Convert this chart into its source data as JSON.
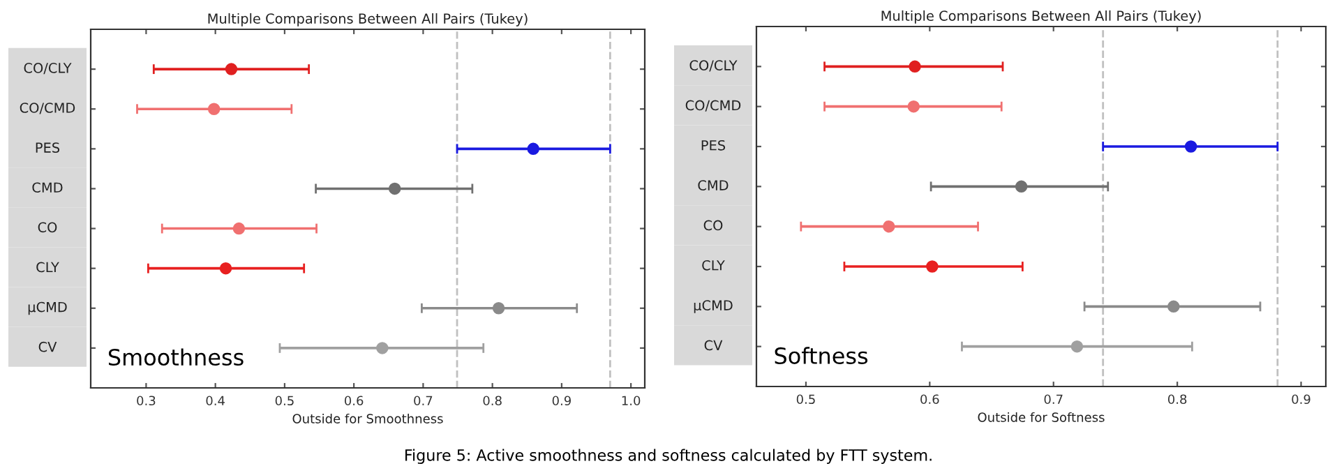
{
  "chart_data": [
    {
      "type": "scatter",
      "orientation": "horizontal",
      "title": "Multiple Comparisons Between All Pairs (Tukey)",
      "xlabel": "Outside for Smoothness",
      "categories": [
        "CO/CLY",
        "CO/CMD",
        "PES",
        "CMD",
        "CO",
        "CLY",
        "µCMD",
        "CV"
      ],
      "values": [
        0.423,
        0.398,
        0.859,
        0.659,
        0.434,
        0.415,
        0.809,
        0.641
      ],
      "errors": [
        [
          0.311,
          0.535
        ],
        [
          0.287,
          0.51
        ],
        [
          0.749,
          0.97
        ],
        [
          0.545,
          0.771
        ],
        [
          0.323,
          0.546
        ],
        [
          0.303,
          0.528
        ],
        [
          0.698,
          0.922
        ],
        [
          0.493,
          0.787
        ]
      ],
      "colors": [
        "#e02020",
        "#f07070",
        "#1a1ae0",
        "#707070",
        "#f07070",
        "#e82020",
        "#8a8a8a",
        "#a0a0a0"
      ],
      "marker": "circle",
      "xlim": [
        0.22,
        1.02
      ],
      "xticks": [
        0.3,
        0.4,
        0.5,
        0.6,
        0.7,
        0.8,
        0.9,
        {
          "value": 1.0,
          "label": "1.0"
        }
      ],
      "ref_lines": [
        {
          "axis": "x",
          "value": 0.749,
          "color": "#c0c0c0",
          "line_style": "dashed"
        },
        {
          "axis": "x",
          "value": 0.97,
          "color": "#c0c0c0",
          "line_style": "dashed"
        }
      ],
      "grid": false,
      "legend": false,
      "annotations": [
        "Smoothness",
        "Figure 5: Active smoothness and softness calculated by FTT system."
      ]
    },
    {
      "type": "scatter",
      "orientation": "horizontal",
      "title": "Multiple Comparisons Between All Pairs (Tukey)",
      "xlabel": "Outside for Softness",
      "categories": [
        "CO/CLY",
        "CO/CMD",
        "PES",
        "CMD",
        "CO",
        "CLY",
        "µCMD",
        "CV"
      ],
      "values": [
        0.588,
        0.587,
        0.811,
        0.674,
        0.567,
        0.602,
        0.797,
        0.719
      ],
      "errors": [
        [
          0.515,
          0.659
        ],
        [
          0.515,
          0.658
        ],
        [
          0.74,
          0.881
        ],
        [
          0.601,
          0.744
        ],
        [
          0.496,
          0.639
        ],
        [
          0.531,
          0.675
        ],
        [
          0.725,
          0.867
        ],
        [
          0.626,
          0.812
        ]
      ],
      "colors": [
        "#e02020",
        "#f07070",
        "#1a1ae0",
        "#707070",
        "#f07070",
        "#e82020",
        "#8a8a8a",
        "#a0a0a0"
      ],
      "marker": "circle",
      "xlim": [
        0.46,
        0.92
      ],
      "xticks": [
        0.5,
        0.6,
        0.7,
        0.8,
        0.9
      ],
      "ref_lines": [
        {
          "axis": "x",
          "value": 0.74,
          "color": "#c0c0c0",
          "line_style": "dashed"
        },
        {
          "axis": "x",
          "value": 0.881,
          "color": "#c0c0c0",
          "line_style": "dashed"
        }
      ],
      "grid": false,
      "legend": false,
      "annotations": [
        "Softness"
      ]
    }
  ]
}
